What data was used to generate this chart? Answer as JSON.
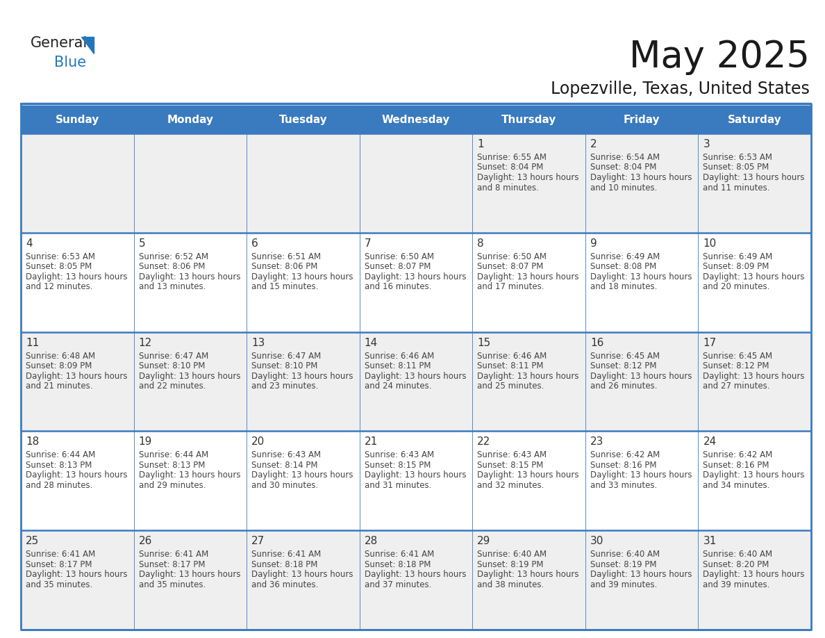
{
  "title": "May 2025",
  "subtitle": "Lopezville, Texas, United States",
  "header_bg": "#3a7abf",
  "header_text_color": "#ffffff",
  "row_bg_odd": "#efefef",
  "row_bg_even": "#ffffff",
  "cell_text_color": "#444444",
  "day_num_color": "#333333",
  "grid_line_color": "#3a7abf",
  "logo_color": "#2277bb",
  "day_headers": [
    "Sunday",
    "Monday",
    "Tuesday",
    "Wednesday",
    "Thursday",
    "Friday",
    "Saturday"
  ],
  "weeks": [
    [
      {
        "day": null,
        "sunrise": null,
        "sunset": null,
        "daylight": null
      },
      {
        "day": null,
        "sunrise": null,
        "sunset": null,
        "daylight": null
      },
      {
        "day": null,
        "sunrise": null,
        "sunset": null,
        "daylight": null
      },
      {
        "day": null,
        "sunrise": null,
        "sunset": null,
        "daylight": null
      },
      {
        "day": 1,
        "sunrise": "6:55 AM",
        "sunset": "8:04 PM",
        "daylight": "13 hours and 8 minutes."
      },
      {
        "day": 2,
        "sunrise": "6:54 AM",
        "sunset": "8:04 PM",
        "daylight": "13 hours and 10 minutes."
      },
      {
        "day": 3,
        "sunrise": "6:53 AM",
        "sunset": "8:05 PM",
        "daylight": "13 hours and 11 minutes."
      }
    ],
    [
      {
        "day": 4,
        "sunrise": "6:53 AM",
        "sunset": "8:05 PM",
        "daylight": "13 hours and 12 minutes."
      },
      {
        "day": 5,
        "sunrise": "6:52 AM",
        "sunset": "8:06 PM",
        "daylight": "13 hours and 13 minutes."
      },
      {
        "day": 6,
        "sunrise": "6:51 AM",
        "sunset": "8:06 PM",
        "daylight": "13 hours and 15 minutes."
      },
      {
        "day": 7,
        "sunrise": "6:50 AM",
        "sunset": "8:07 PM",
        "daylight": "13 hours and 16 minutes."
      },
      {
        "day": 8,
        "sunrise": "6:50 AM",
        "sunset": "8:07 PM",
        "daylight": "13 hours and 17 minutes."
      },
      {
        "day": 9,
        "sunrise": "6:49 AM",
        "sunset": "8:08 PM",
        "daylight": "13 hours and 18 minutes."
      },
      {
        "day": 10,
        "sunrise": "6:49 AM",
        "sunset": "8:09 PM",
        "daylight": "13 hours and 20 minutes."
      }
    ],
    [
      {
        "day": 11,
        "sunrise": "6:48 AM",
        "sunset": "8:09 PM",
        "daylight": "13 hours and 21 minutes."
      },
      {
        "day": 12,
        "sunrise": "6:47 AM",
        "sunset": "8:10 PM",
        "daylight": "13 hours and 22 minutes."
      },
      {
        "day": 13,
        "sunrise": "6:47 AM",
        "sunset": "8:10 PM",
        "daylight": "13 hours and 23 minutes."
      },
      {
        "day": 14,
        "sunrise": "6:46 AM",
        "sunset": "8:11 PM",
        "daylight": "13 hours and 24 minutes."
      },
      {
        "day": 15,
        "sunrise": "6:46 AM",
        "sunset": "8:11 PM",
        "daylight": "13 hours and 25 minutes."
      },
      {
        "day": 16,
        "sunrise": "6:45 AM",
        "sunset": "8:12 PM",
        "daylight": "13 hours and 26 minutes."
      },
      {
        "day": 17,
        "sunrise": "6:45 AM",
        "sunset": "8:12 PM",
        "daylight": "13 hours and 27 minutes."
      }
    ],
    [
      {
        "day": 18,
        "sunrise": "6:44 AM",
        "sunset": "8:13 PM",
        "daylight": "13 hours and 28 minutes."
      },
      {
        "day": 19,
        "sunrise": "6:44 AM",
        "sunset": "8:13 PM",
        "daylight": "13 hours and 29 minutes."
      },
      {
        "day": 20,
        "sunrise": "6:43 AM",
        "sunset": "8:14 PM",
        "daylight": "13 hours and 30 minutes."
      },
      {
        "day": 21,
        "sunrise": "6:43 AM",
        "sunset": "8:15 PM",
        "daylight": "13 hours and 31 minutes."
      },
      {
        "day": 22,
        "sunrise": "6:43 AM",
        "sunset": "8:15 PM",
        "daylight": "13 hours and 32 minutes."
      },
      {
        "day": 23,
        "sunrise": "6:42 AM",
        "sunset": "8:16 PM",
        "daylight": "13 hours and 33 minutes."
      },
      {
        "day": 24,
        "sunrise": "6:42 AM",
        "sunset": "8:16 PM",
        "daylight": "13 hours and 34 minutes."
      }
    ],
    [
      {
        "day": 25,
        "sunrise": "6:41 AM",
        "sunset": "8:17 PM",
        "daylight": "13 hours and 35 minutes."
      },
      {
        "day": 26,
        "sunrise": "6:41 AM",
        "sunset": "8:17 PM",
        "daylight": "13 hours and 35 minutes."
      },
      {
        "day": 27,
        "sunrise": "6:41 AM",
        "sunset": "8:18 PM",
        "daylight": "13 hours and 36 minutes."
      },
      {
        "day": 28,
        "sunrise": "6:41 AM",
        "sunset": "8:18 PM",
        "daylight": "13 hours and 37 minutes."
      },
      {
        "day": 29,
        "sunrise": "6:40 AM",
        "sunset": "8:19 PM",
        "daylight": "13 hours and 38 minutes."
      },
      {
        "day": 30,
        "sunrise": "6:40 AM",
        "sunset": "8:19 PM",
        "daylight": "13 hours and 39 minutes."
      },
      {
        "day": 31,
        "sunrise": "6:40 AM",
        "sunset": "8:20 PM",
        "daylight": "13 hours and 39 minutes."
      }
    ]
  ]
}
